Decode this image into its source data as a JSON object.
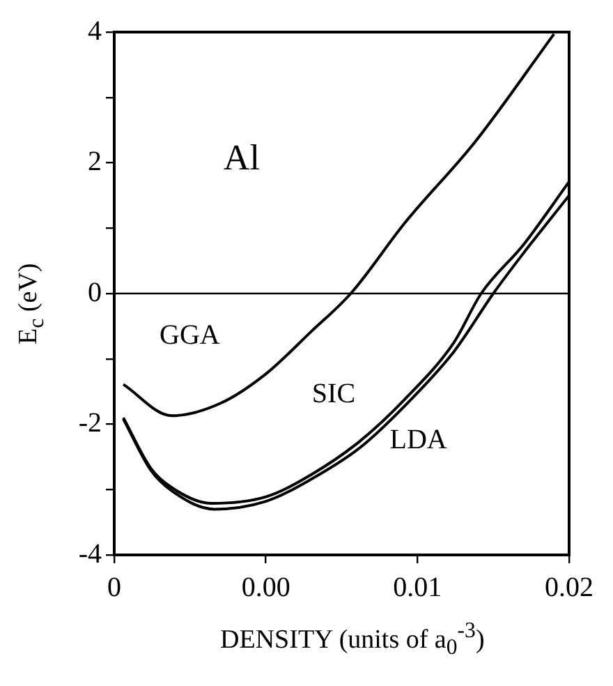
{
  "chart_data": {
    "type": "line",
    "xlabel": "DENSITY (units of a$_{0}$$^{-3}$)",
    "ylabel": "E$_{c}$ (eV)",
    "annotations": [
      "Al"
    ],
    "xlim": [
      0,
      0.015
    ],
    "xticks": [
      0,
      {
        "value": 0.005,
        "label": "0.00"
      },
      0.01,
      {
        "value": 0.015,
        "label": "0.02"
      }
    ],
    "ylim": [
      -4,
      4
    ],
    "yticks": [
      -4,
      {
        "value": -3,
        "label": null
      },
      -2,
      {
        "value": -1,
        "label": null
      },
      0,
      {
        "value": 1,
        "label": null
      },
      2,
      {
        "value": 3,
        "label": null
      },
      4
    ],
    "grid": false,
    "legend": false,
    "marker": "none",
    "line_style": "solid",
    "ref_lines": [
      {
        "axis": "y",
        "value": 0,
        "color": "#000000"
      }
    ],
    "series": [
      {
        "name": "GGA",
        "color": "#000000",
        "x": [
          0.0003,
          0.0019,
          0.0035,
          0.005,
          0.0065,
          0.0078,
          0.0096,
          0.0119,
          0.0145
        ],
        "values": [
          -1.39,
          -1.87,
          -1.68,
          -1.23,
          -0.58,
          0,
          1.09,
          2.32,
          3.97
        ]
      },
      {
        "name": "SIC",
        "color": "#000000",
        "x": [
          0.0003,
          0.0012,
          0.0019,
          0.0032,
          0.005,
          0.0065,
          0.0081,
          0.0096,
          0.0112,
          0.0121,
          0.0135,
          0.015
        ],
        "values": [
          -1.9,
          -2.67,
          -2.97,
          -3.21,
          -3.11,
          -2.77,
          -2.26,
          -1.61,
          -0.75,
          0,
          0.75,
          1.71
        ]
      },
      {
        "name": "LDA",
        "color": "#000000",
        "x": [
          0.0003,
          0.0012,
          0.0019,
          0.0033,
          0.005,
          0.0065,
          0.0081,
          0.0096,
          0.0112,
          0.0125,
          0.0135,
          0.015
        ],
        "values": [
          -1.92,
          -2.7,
          -3.02,
          -3.3,
          -3.18,
          -2.84,
          -2.36,
          -1.71,
          -0.89,
          0,
          0.62,
          1.5
        ]
      }
    ]
  }
}
